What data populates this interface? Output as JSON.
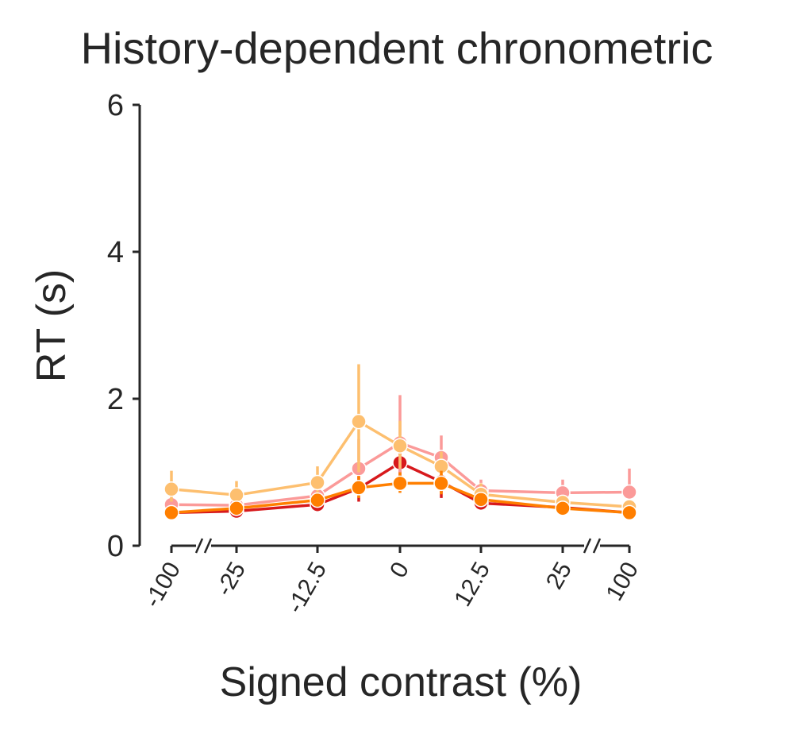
{
  "chart_data": {
    "type": "line",
    "title": "History-dependent chronometric",
    "xlabel": "Signed contrast (%)",
    "ylabel": "RT (s)",
    "ylim": [
      0,
      6
    ],
    "yticks": [
      "0",
      "2",
      "4",
      "6"
    ],
    "x": [
      -100,
      -25,
      -12.5,
      -6.25,
      0,
      6.25,
      12.5,
      25,
      100
    ],
    "xticks": [
      "-100",
      "-25",
      "-12.5",
      "0",
      "12.5",
      "25",
      "100"
    ],
    "xtick_values": [
      -100,
      -25,
      -12.5,
      0,
      12.5,
      25,
      100
    ],
    "axis_breaks": "between -100 and -25, and between 25 and 100",
    "legend": "none",
    "grid": false,
    "series": [
      {
        "color": "#d7191c",
        "values": [
          0.45,
          0.47,
          0.56,
          0.78,
          1.13,
          0.87,
          0.58,
          0.52,
          0.45
        ],
        "err_low": [
          0.4,
          0.42,
          0.5,
          0.6,
          0.85,
          0.65,
          0.52,
          0.47,
          0.4
        ],
        "err_high": [
          0.5,
          0.52,
          0.62,
          0.98,
          1.35,
          1.05,
          0.65,
          0.57,
          0.5
        ]
      },
      {
        "color": "#fb9a99",
        "values": [
          0.56,
          0.55,
          0.68,
          1.05,
          1.4,
          1.2,
          0.75,
          0.72,
          0.73
        ],
        "err_low": [
          0.5,
          0.48,
          0.58,
          0.75,
          1.0,
          0.95,
          0.65,
          0.6,
          0.55
        ],
        "err_high": [
          0.65,
          0.65,
          0.82,
          1.45,
          2.05,
          1.5,
          0.9,
          0.9,
          1.05
        ]
      },
      {
        "color": "#fdbf6f",
        "values": [
          0.77,
          0.69,
          0.86,
          1.69,
          1.36,
          1.08,
          0.7,
          0.59,
          0.53
        ],
        "err_low": [
          0.6,
          0.55,
          0.7,
          1.0,
          1.05,
          0.9,
          0.6,
          0.52,
          0.47
        ],
        "err_high": [
          1.02,
          0.88,
          1.08,
          2.47,
          1.7,
          1.28,
          0.85,
          0.68,
          0.62
        ]
      },
      {
        "color": "#ff7f00",
        "values": [
          0.45,
          0.51,
          0.62,
          0.79,
          0.85,
          0.85,
          0.63,
          0.51,
          0.45
        ],
        "err_low": [
          0.4,
          0.45,
          0.55,
          0.65,
          0.72,
          0.7,
          0.55,
          0.46,
          0.4
        ],
        "err_high": [
          0.5,
          0.57,
          0.7,
          0.95,
          1.0,
          1.02,
          0.72,
          0.56,
          0.5
        ]
      }
    ]
  }
}
